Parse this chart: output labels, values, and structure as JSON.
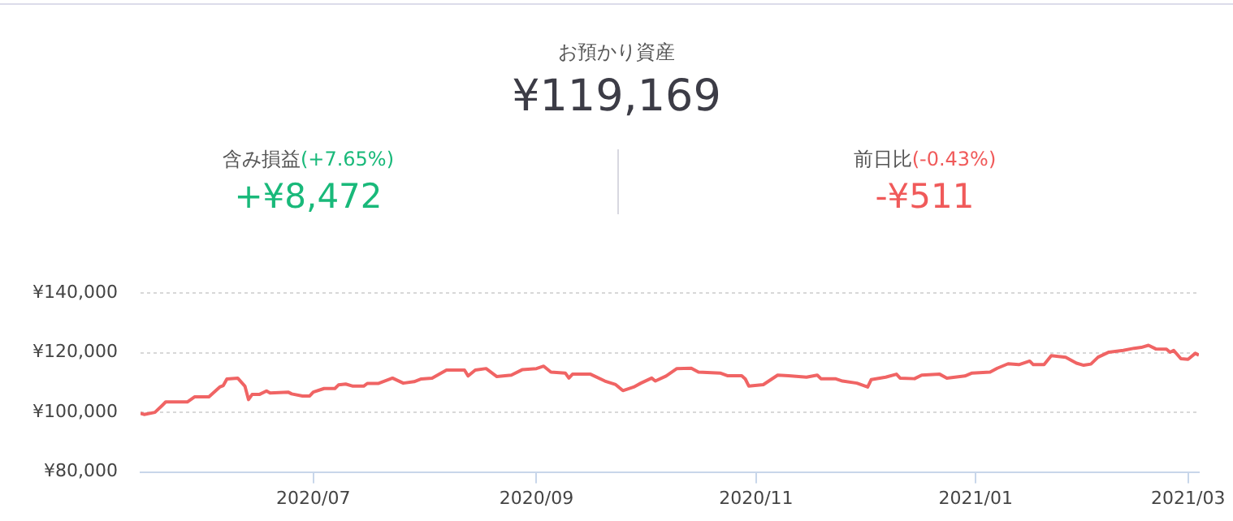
{
  "chart_data": {
    "type": "line",
    "title": "お預かり資産",
    "subtitle": "¥119,169",
    "annotations": [
      "含み損益",
      "(+7.65%)",
      "+¥8,472",
      "前日比",
      "(-0.43%)",
      "-¥511"
    ],
    "x": [
      "2020-05-14",
      "2020-05-15",
      "2020-05-18",
      "2020-05-20",
      "2020-05-21",
      "2020-05-27",
      "2020-05-29",
      "2020-06-02",
      "2020-06-05",
      "2020-06-06",
      "2020-06-07",
      "2020-06-10",
      "2020-06-12",
      "2020-06-13",
      "2020-06-14",
      "2020-06-16",
      "2020-06-18",
      "2020-06-19",
      "2020-06-24",
      "2020-06-25",
      "2020-06-28",
      "2020-06-30",
      "2020-07-01",
      "2020-07-04",
      "2020-07-07",
      "2020-07-08",
      "2020-07-10",
      "2020-07-12",
      "2020-07-15",
      "2020-07-16",
      "2020-07-19",
      "2020-07-23",
      "2020-07-26",
      "2020-07-29",
      "2020-07-31",
      "2020-08-03",
      "2020-08-07",
      "2020-08-12",
      "2020-08-13",
      "2020-08-15",
      "2020-08-18",
      "2020-08-21",
      "2020-08-25",
      "2020-08-28",
      "2020-09-01",
      "2020-09-03",
      "2020-09-05",
      "2020-09-09",
      "2020-09-10",
      "2020-09-11",
      "2020-09-16",
      "2020-09-20",
      "2020-09-23",
      "2020-09-25",
      "2020-09-28",
      "2020-09-30",
      "2020-10-03",
      "2020-10-04",
      "2020-10-07",
      "2020-10-10",
      "2020-10-14",
      "2020-10-16",
      "2020-10-22",
      "2020-10-24",
      "2020-10-28",
      "2020-10-29",
      "2020-10-30",
      "2020-11-03",
      "2020-11-07",
      "2020-11-10",
      "2020-11-15",
      "2020-11-18",
      "2020-11-19",
      "2020-11-23",
      "2020-11-25",
      "2020-11-29",
      "2020-12-02",
      "2020-12-03",
      "2020-12-07",
      "2020-12-10",
      "2020-12-11",
      "2020-12-15",
      "2020-12-17",
      "2020-12-22",
      "2020-12-24",
      "2020-12-29",
      "2020-12-31",
      "2021-01-05",
      "2021-01-07",
      "2021-01-10",
      "2021-01-13",
      "2021-01-16",
      "2021-01-17",
      "2021-01-20",
      "2021-01-22",
      "2021-01-26",
      "2021-01-29",
      "2021-01-31",
      "2021-02-02",
      "2021-02-04",
      "2021-02-07",
      "2021-02-11",
      "2021-02-14",
      "2021-02-16",
      "2021-02-18",
      "2021-02-20",
      "2021-02-23",
      "2021-02-24",
      "2021-02-25",
      "2021-02-27",
      "2021-03-01",
      "2021-03-03",
      "2021-03-04"
    ],
    "series": [
      {
        "color": "#f06464",
        "values": [
          99700,
          99300,
          100000,
          102300,
          103500,
          103500,
          105200,
          105200,
          108500,
          109000,
          111200,
          111500,
          108800,
          104300,
          106000,
          106000,
          107200,
          106500,
          106800,
          106200,
          105500,
          105500,
          106800,
          108000,
          108000,
          109200,
          109500,
          108800,
          108800,
          109700,
          109700,
          111500,
          109800,
          110300,
          111200,
          111500,
          114200,
          114200,
          112200,
          114200,
          114700,
          112000,
          112500,
          114300,
          114700,
          115500,
          113500,
          113200,
          111500,
          112800,
          112800,
          110500,
          109300,
          107300,
          108500,
          109800,
          111500,
          110500,
          112200,
          114700,
          114800,
          113500,
          113200,
          112300,
          112300,
          111200,
          108800,
          109300,
          112500,
          112300,
          111800,
          112500,
          111300,
          111300,
          110500,
          109800,
          108500,
          111000,
          111800,
          112800,
          111500,
          111300,
          112500,
          112800,
          111500,
          112200,
          113200,
          113500,
          114800,
          116300,
          116000,
          117200,
          116000,
          116000,
          119000,
          118500,
          116500,
          115800,
          116200,
          118500,
          120200,
          120800,
          121500,
          121800,
          122500,
          121300,
          121200,
          120200,
          120800,
          118000,
          117800,
          119800,
          119200
        ]
      }
    ],
    "xlim": [
      "2020-05-14",
      "2021-03-04"
    ],
    "xticks": [
      {
        "value": "2020-07-01",
        "label": "2020/07"
      },
      {
        "value": "2020-09-01",
        "label": "2020/09"
      },
      {
        "value": "2020-11-01",
        "label": "2020/11"
      },
      {
        "value": "2021-01-01",
        "label": "2021/01"
      },
      {
        "value": "2021-03-01",
        "label": "2021/03"
      }
    ],
    "ylim": [
      80000,
      140000
    ],
    "yticks": [
      {
        "value": 80000,
        "label": "¥80,000"
      },
      {
        "value": 100000,
        "label": "¥100,000"
      },
      {
        "value": 120000,
        "label": "¥120,000"
      },
      {
        "value": 140000,
        "label": "¥140,000"
      }
    ],
    "grid": "y",
    "legend": false,
    "marker": "none",
    "line_style": "solid"
  }
}
